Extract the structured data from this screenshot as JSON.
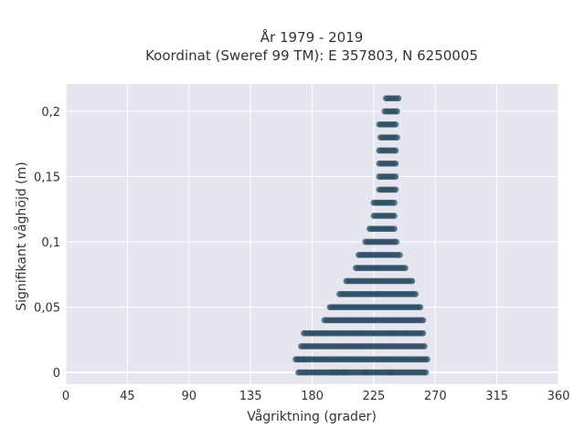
{
  "chart_data": {
    "type": "scatter",
    "title_lines": [
      "År 1979 - 2019",
      "Koordinat (Sweref 99 TM): E 357803, N 6250005"
    ],
    "xlabel": "Vågriktning (grader)",
    "ylabel": "Signifikant våghöjd (m)",
    "xlim": [
      0,
      360
    ],
    "ylim": [
      -0.009,
      0.221
    ],
    "x_ticks": [
      0,
      45,
      90,
      135,
      180,
      225,
      270,
      315,
      360
    ],
    "x_tick_labels": [
      "0",
      "45",
      "90",
      "135",
      "180",
      "225",
      "270",
      "315",
      "360"
    ],
    "y_ticks": [
      0,
      0.05,
      0.1,
      0.15,
      0.2
    ],
    "y_tick_labels": [
      "0",
      "0,05",
      "0,1",
      "0,15",
      "0,2"
    ],
    "grid": true,
    "marker_color": "#2f4f66",
    "plot_background": "#e5e6ef",
    "bands": [
      {
        "y": 0.21,
        "x_from": 234,
        "x_to": 243
      },
      {
        "y": 0.2,
        "x_from": 233,
        "x_to": 242
      },
      {
        "y": 0.19,
        "x_from": 229,
        "x_to": 242
      },
      {
        "y": 0.18,
        "x_from": 230,
        "x_to": 242
      },
      {
        "y": 0.17,
        "x_from": 229,
        "x_to": 242
      },
      {
        "y": 0.16,
        "x_from": 229,
        "x_to": 242
      },
      {
        "y": 0.15,
        "x_from": 229,
        "x_to": 241
      },
      {
        "y": 0.14,
        "x_from": 229,
        "x_to": 241
      },
      {
        "y": 0.13,
        "x_from": 225,
        "x_to": 241
      },
      {
        "y": 0.12,
        "x_from": 225,
        "x_to": 241
      },
      {
        "y": 0.11,
        "x_from": 222,
        "x_to": 241
      },
      {
        "y": 0.1,
        "x_from": 219,
        "x_to": 242
      },
      {
        "y": 0.09,
        "x_from": 214,
        "x_to": 244
      },
      {
        "y": 0.08,
        "x_from": 212,
        "x_to": 248
      },
      {
        "y": 0.07,
        "x_from": 205,
        "x_to": 253
      },
      {
        "y": 0.06,
        "x_from": 200,
        "x_to": 256
      },
      {
        "y": 0.05,
        "x_from": 193,
        "x_to": 260
      },
      {
        "y": 0.04,
        "x_from": 189,
        "x_to": 261
      },
      {
        "y": 0.03,
        "x_from": 174,
        "x_to": 262
      },
      {
        "y": 0.02,
        "x_from": 172,
        "x_to": 263
      },
      {
        "y": 0.01,
        "x_from": 168,
        "x_to": 264
      },
      {
        "y": 0.0,
        "x_from": 170,
        "x_to": 263
      }
    ],
    "outliers": [
      {
        "x": 170,
        "y": 0.01
      },
      {
        "x": 174,
        "y": 0.01
      },
      {
        "x": 195,
        "y": 0.0
      },
      {
        "x": 198,
        "y": 0.0
      },
      {
        "x": 202,
        "y": 0.0
      },
      {
        "x": 204,
        "y": 0.0
      },
      {
        "x": 219,
        "y": 0.0
      },
      {
        "x": 237,
        "y": 0.0
      }
    ]
  }
}
